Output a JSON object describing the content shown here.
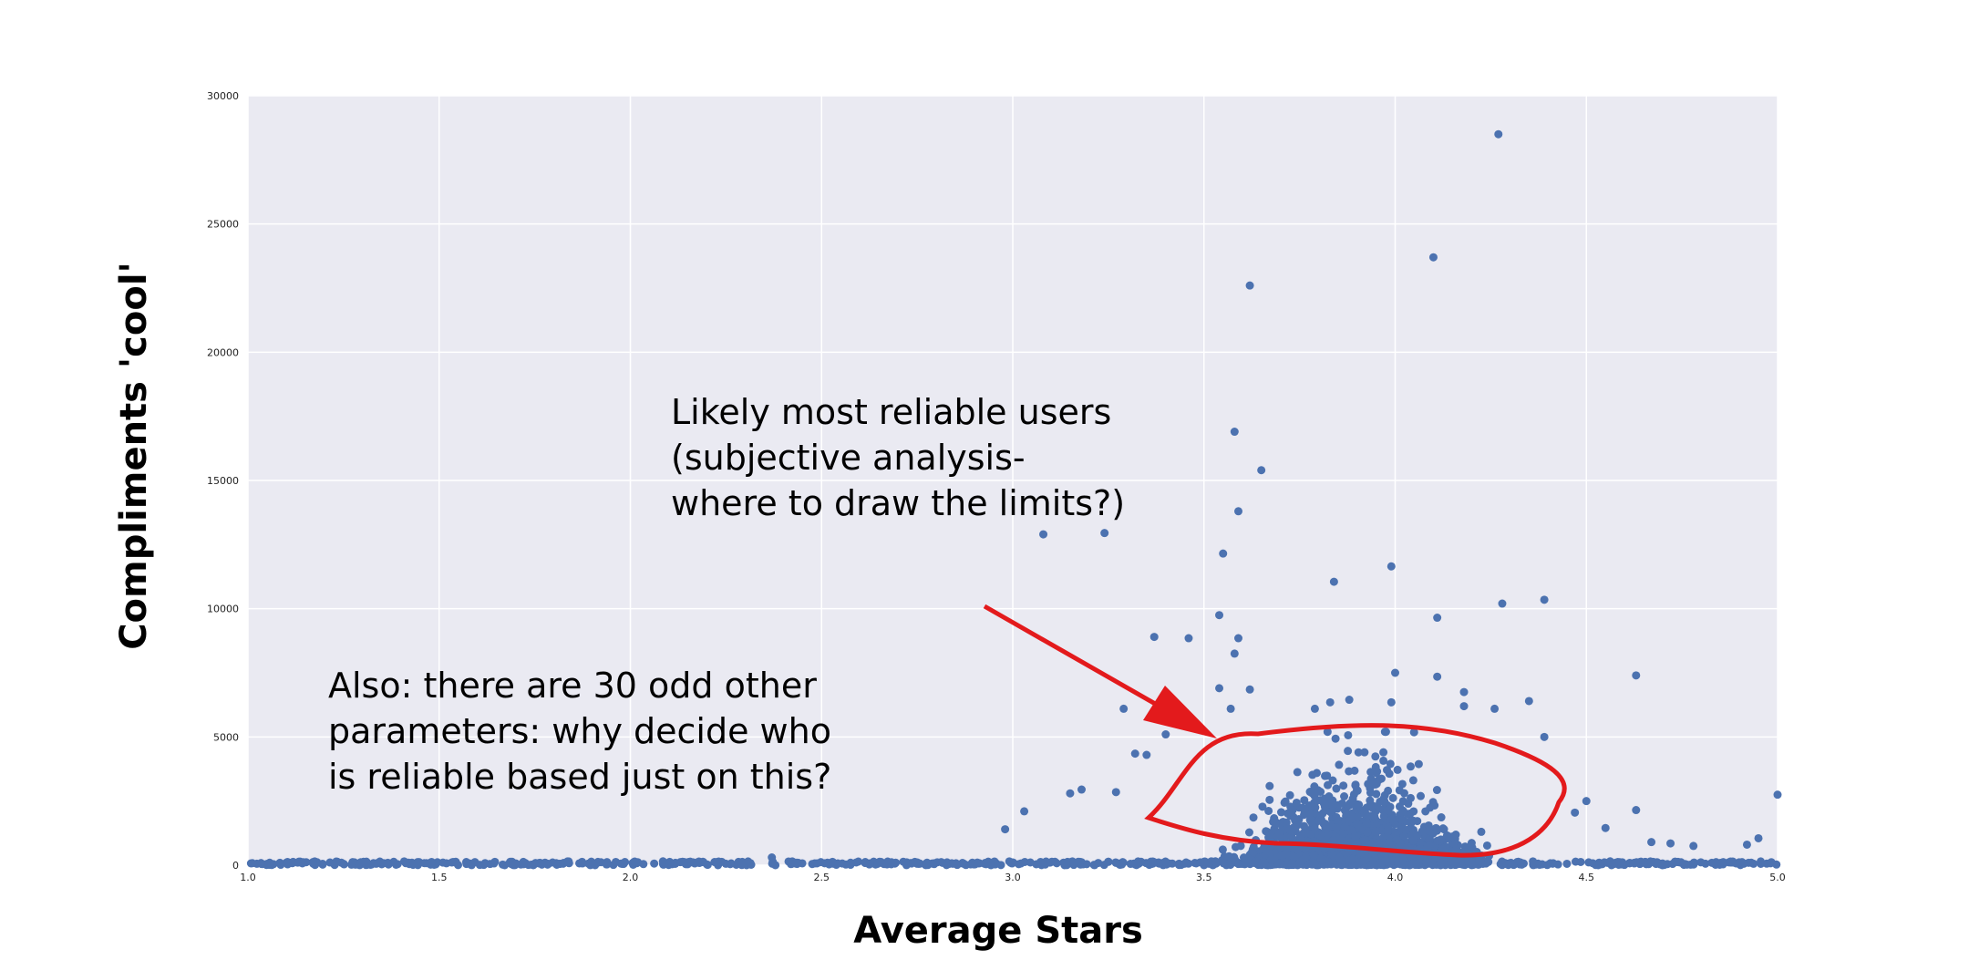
{
  "chart_data": {
    "type": "scatter",
    "title": "",
    "xlabel": "Average Stars",
    "ylabel": "Compliments 'cool'",
    "xlim": [
      1.0,
      5.0
    ],
    "ylim": [
      0,
      30000
    ],
    "x_ticks": [
      "1.0",
      "1.5",
      "2.0",
      "2.5",
      "3.0",
      "3.5",
      "4.0",
      "4.5",
      "5.0"
    ],
    "y_ticks": [
      "0",
      "5000",
      "10000",
      "15000",
      "20000",
      "25000",
      "30000"
    ],
    "grid": true,
    "marker_color": "#4c72b0",
    "background_color": "#eaeaf2",
    "annotation_color": "#e31a1c",
    "annotations": {
      "reliable_users": [
        "Likely most reliable users",
        "(subjective analysis-",
        "where to draw the limits?)"
      ],
      "other_params": [
        "Also: there are 30 odd other",
        "parameters: why decide who",
        "is reliable based just on this?"
      ]
    },
    "outliers": [
      {
        "x": 4.27,
        "y": 28500
      },
      {
        "x": 4.1,
        "y": 23700
      },
      {
        "x": 3.62,
        "y": 22600
      },
      {
        "x": 3.58,
        "y": 16900
      },
      {
        "x": 3.65,
        "y": 15400
      },
      {
        "x": 3.59,
        "y": 13800
      },
      {
        "x": 3.08,
        "y": 12900
      },
      {
        "x": 3.24,
        "y": 12950
      },
      {
        "x": 3.55,
        "y": 12150
      },
      {
        "x": 3.99,
        "y": 11650
      },
      {
        "x": 3.84,
        "y": 11050
      },
      {
        "x": 4.39,
        "y": 10350
      },
      {
        "x": 4.28,
        "y": 10200
      },
      {
        "x": 3.54,
        "y": 9750
      },
      {
        "x": 4.11,
        "y": 9650
      },
      {
        "x": 3.37,
        "y": 8900
      },
      {
        "x": 3.46,
        "y": 8850
      },
      {
        "x": 3.59,
        "y": 8850
      },
      {
        "x": 3.58,
        "y": 8250
      },
      {
        "x": 4.0,
        "y": 7500
      },
      {
        "x": 4.11,
        "y": 7350
      },
      {
        "x": 4.63,
        "y": 7400
      },
      {
        "x": 3.54,
        "y": 6900
      },
      {
        "x": 3.62,
        "y": 6850
      },
      {
        "x": 4.18,
        "y": 6750
      },
      {
        "x": 3.88,
        "y": 6450
      },
      {
        "x": 3.83,
        "y": 6350
      },
      {
        "x": 3.99,
        "y": 6350
      },
      {
        "x": 4.35,
        "y": 6400
      },
      {
        "x": 3.29,
        "y": 6100
      },
      {
        "x": 3.57,
        "y": 6100
      },
      {
        "x": 3.79,
        "y": 6100
      },
      {
        "x": 4.18,
        "y": 6200
      },
      {
        "x": 4.26,
        "y": 6100
      },
      {
        "x": 3.4,
        "y": 5100
      },
      {
        "x": 4.39,
        "y": 5000
      },
      {
        "x": 3.32,
        "y": 4350
      },
      {
        "x": 3.35,
        "y": 4300
      },
      {
        "x": 4.63,
        "y": 2150
      },
      {
        "x": 3.03,
        "y": 2100
      },
      {
        "x": 2.98,
        "y": 1400
      },
      {
        "x": 3.18,
        "y": 2950
      },
      {
        "x": 3.15,
        "y": 2800
      },
      {
        "x": 3.27,
        "y": 2850
      },
      {
        "x": 4.5,
        "y": 2500
      },
      {
        "x": 4.47,
        "y": 2050
      },
      {
        "x": 4.55,
        "y": 1450
      },
      {
        "x": 2.37,
        "y": 300
      },
      {
        "x": 4.95,
        "y": 1050
      },
      {
        "x": 4.92,
        "y": 800
      },
      {
        "x": 5.0,
        "y": 2750
      },
      {
        "x": 4.72,
        "y": 850
      },
      {
        "x": 4.67,
        "y": 900
      },
      {
        "x": 4.78,
        "y": 750
      }
    ],
    "cluster": {
      "center_x": 3.9,
      "spread_x": 0.22,
      "scale_y": 1100,
      "max_y": 5200,
      "x_range": [
        3.0,
        4.9
      ],
      "count": 1600
    },
    "baseline": {
      "x_range": [
        1.0,
        5.0
      ],
      "y_max": 150
    }
  }
}
